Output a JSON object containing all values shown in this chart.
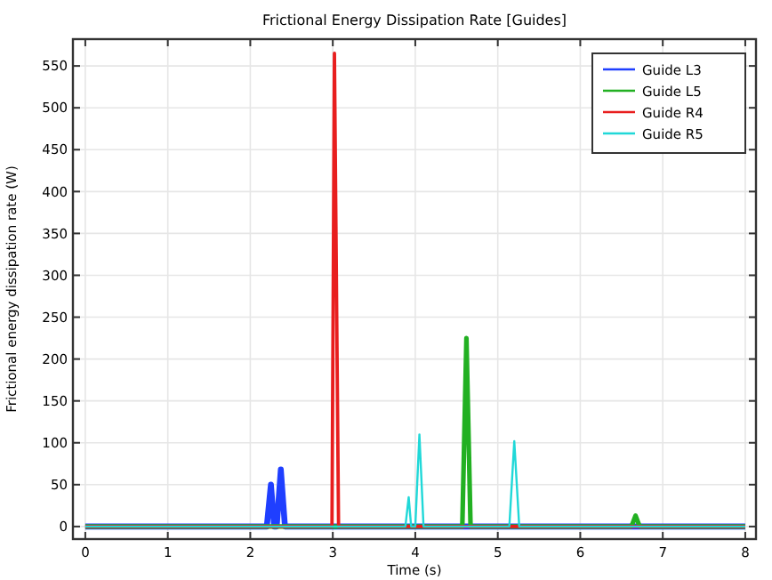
{
  "chart_data": {
    "type": "line",
    "title": "Frictional Energy Dissipation Rate [Guides]",
    "xlabel": "Time (s)",
    "ylabel": "Frictional energy dissipation rate (W)",
    "xlim": [
      -0.15,
      8.13
    ],
    "ylim": [
      -15,
      582
    ],
    "xticks": [
      0,
      1,
      2,
      3,
      4,
      5,
      6,
      7,
      8
    ],
    "yticks": [
      0,
      50,
      100,
      150,
      200,
      250,
      300,
      350,
      400,
      450,
      500,
      550
    ],
    "grid": true,
    "legend": "top right",
    "marker": "none",
    "line_style": "solid",
    "series": [
      {
        "name": "Guide L3",
        "color": "#1f3fff",
        "x": [
          0,
          2.2,
          2.25,
          2.29,
          2.32,
          2.37,
          2.42,
          8
        ],
        "values": [
          0,
          0,
          50,
          0,
          0,
          68,
          0,
          0
        ]
      },
      {
        "name": "Guide L5",
        "color": "#22b022",
        "x": [
          0,
          4.57,
          4.62,
          4.67,
          6.62,
          6.67,
          6.72,
          8
        ],
        "values": [
          0,
          0,
          225,
          0,
          0,
          13,
          0,
          0
        ]
      },
      {
        "name": "Guide R4",
        "color": "#e81e1e",
        "x": [
          0,
          2.99,
          3.02,
          3.07,
          8
        ],
        "values": [
          0,
          0,
          565,
          0,
          0
        ]
      },
      {
        "name": "Guide R5",
        "color": "#20d8d8",
        "x": [
          0,
          3.88,
          3.92,
          3.95,
          4.0,
          4.05,
          4.1,
          5.14,
          5.2,
          5.26,
          8
        ],
        "values": [
          0,
          0,
          35,
          0,
          0,
          110,
          0,
          0,
          102,
          0,
          0
        ]
      }
    ]
  }
}
